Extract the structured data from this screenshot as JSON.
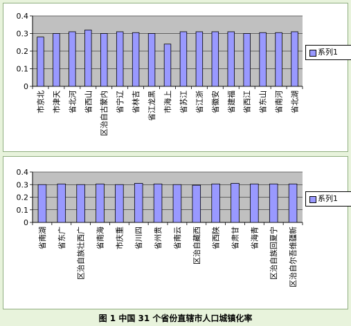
{
  "colors": {
    "bar": "#9999ff",
    "bar_stroke": "#000000",
    "plot_area": "#c0c0c0",
    "panel_bg": "#ffffff",
    "page_bg": "#e8f3dc"
  },
  "caption": "图 1 中国 31 个省份直辖市人口城镇化率",
  "chart_data": [
    {
      "type": "bar",
      "categories": [
        "北京市",
        "天津市",
        "河北省",
        "山西省",
        "内蒙古自治区",
        "辽宁省",
        "吉林省",
        "黑龙江省",
        "上海市",
        "江苏省",
        "浙江省",
        "安徽省",
        "福建省",
        "江西省",
        "山东省",
        "河南省",
        "湖北省"
      ],
      "category_labels": [
        "市京北",
        "市津天",
        "省北河",
        "省西山",
        "区治自古蒙内",
        "省宁辽",
        "省林吉",
        "省江龙黑",
        "市海上",
        "省苏江",
        "省江浙",
        "省徽安",
        "省建福",
        "省西江",
        "省东山",
        "省南河",
        "省北湖"
      ],
      "series": [
        {
          "name": "系列1",
          "values": [
            0.28,
            0.3,
            0.31,
            0.32,
            0.3,
            0.31,
            0.305,
            0.3,
            0.24,
            0.31,
            0.31,
            0.31,
            0.31,
            0.3,
            0.305,
            0.305,
            0.31
          ]
        }
      ],
      "yticks": [
        "0",
        "0.1",
        "0.2",
        "0.3",
        "0.4"
      ],
      "ylim": [
        0,
        0.4
      ],
      "grid": true,
      "legend": "right",
      "legend_label": "系列1"
    },
    {
      "type": "bar",
      "categories": [
        "湖南省",
        "广东省",
        "广西壮族自治区",
        "海南省",
        "重庆市",
        "四川省",
        "贵州省",
        "云南省",
        "西藏自治区",
        "陕西省",
        "甘肃省",
        "青海省",
        "宁夏回族自治区",
        "新疆维吾尔自治区"
      ],
      "category_labels": [
        "省南湖",
        "省东广",
        "区治自族壮西广",
        "省南海",
        "市庆重",
        "省川四",
        "省州贵",
        "省南云",
        "区治自藏西",
        "省西陕",
        "省肃甘",
        "省海青",
        "区治自族回夏宁",
        "区治自尔吾维疆新"
      ],
      "series": [
        {
          "name": "系列1",
          "values": [
            0.3,
            0.305,
            0.3,
            0.305,
            0.3,
            0.31,
            0.305,
            0.3,
            0.295,
            0.305,
            0.31,
            0.305,
            0.305,
            0.305
          ]
        }
      ],
      "yticks": [
        "0",
        "0.1",
        "0.2",
        "0.3",
        "0.4"
      ],
      "ylim": [
        0,
        0.4
      ],
      "grid": true,
      "legend": "right",
      "legend_label": "系列1"
    }
  ]
}
